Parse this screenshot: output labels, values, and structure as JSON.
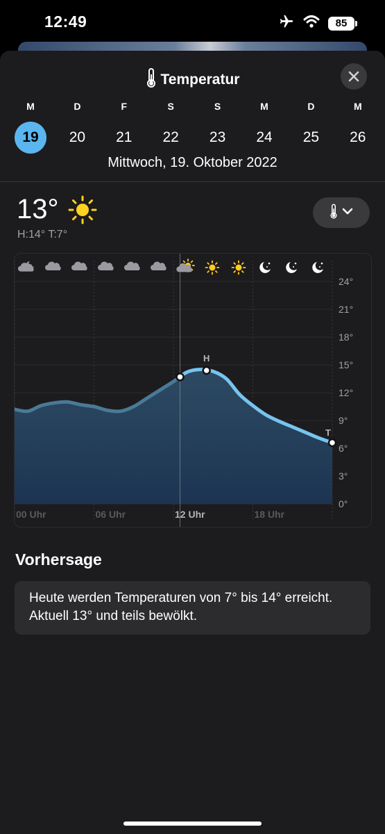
{
  "status_bar": {
    "time": "12:49",
    "battery": "85"
  },
  "header": {
    "title": "Temperatur"
  },
  "days": [
    {
      "letter": "M",
      "num": "19",
      "selected": true
    },
    {
      "letter": "D",
      "num": "20"
    },
    {
      "letter": "F",
      "num": "21"
    },
    {
      "letter": "S",
      "num": "22"
    },
    {
      "letter": "S",
      "num": "23"
    },
    {
      "letter": "M",
      "num": "24"
    },
    {
      "letter": "D",
      "num": "25"
    },
    {
      "letter": "M",
      "num": "26"
    }
  ],
  "date_label": "Mittwoch, 19. Oktober 2022",
  "current": {
    "temp": "13°",
    "high_low": "H:14° T:7°"
  },
  "chart_data": {
    "type": "area",
    "x_label_ticks": [
      "00 Uhr",
      "06 Uhr",
      "12 Uhr",
      "18 Uhr"
    ],
    "y_ticks": [
      "24°",
      "21°",
      "18°",
      "15°",
      "12°",
      "9°",
      "6°",
      "3°",
      "0°"
    ],
    "ylim": [
      0,
      24
    ],
    "x_hours": [
      0,
      1,
      2,
      3,
      4,
      5,
      6,
      7,
      8,
      9,
      10,
      11,
      12,
      13,
      14,
      15,
      16,
      17,
      18,
      19,
      20,
      21,
      22,
      23,
      24
    ],
    "temps": [
      10.2,
      10.0,
      10.6,
      10.9,
      11.0,
      10.7,
      10.5,
      10.1,
      10.0,
      10.5,
      11.4,
      12.3,
      13.2,
      14.2,
      14.5,
      14.3,
      13.5,
      11.8,
      10.6,
      9.6,
      8.9,
      8.3,
      7.7,
      7.1,
      6.6
    ],
    "now_hour": 12.5,
    "high": {
      "label": "H",
      "hour": 14.5,
      "value": 14
    },
    "low": {
      "label": "T",
      "hour": 24,
      "value": 7
    },
    "hourly_icons": [
      "moon-cloud-icon",
      "cloud-icon",
      "cloud-icon",
      "cloud-icon",
      "cloud-icon",
      "cloud-icon",
      "sun-cloud-icon",
      "sun-icon",
      "sun-icon",
      "moon-stars-icon",
      "moon-stars-icon",
      "moon-stars-icon"
    ],
    "colors": {
      "past_line": "#4a7a98",
      "future_line": "#77c4ef",
      "fill_top": "#2e4d66",
      "fill_bottom": "#1c3452"
    }
  },
  "forecast": {
    "title": "Vorhersage",
    "text": "Heute werden Temperaturen von 7° bis 14° erreicht. Aktuell 13° und teils bewölkt."
  }
}
